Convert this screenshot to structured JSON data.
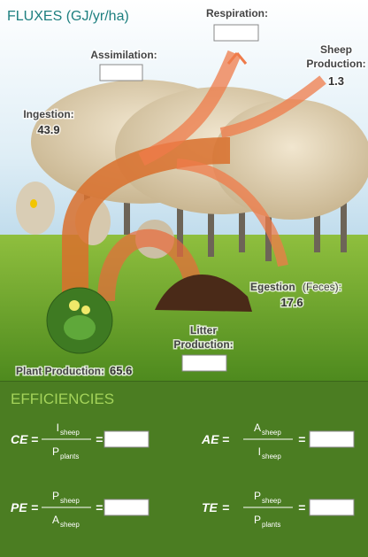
{
  "header": {
    "title": "FLUXES (GJ/yr/ha)"
  },
  "fluxes": {
    "respiration": {
      "label": "Respiration:"
    },
    "assimilation": {
      "label": "Assimilation:"
    },
    "sheep_production": {
      "label_lines": [
        "Sheep",
        "Production:"
      ],
      "value": 1.3
    },
    "ingestion": {
      "label": "Ingestion:",
      "value": 43.9
    },
    "egestion": {
      "label": "Egestion",
      "note": "(Feces):",
      "value": 17.6
    },
    "litter_production": {
      "label_lines": [
        "Litter",
        "Production:"
      ]
    },
    "plant_production": {
      "label": "Plant Production:",
      "value": 65.6
    }
  },
  "efficiencies": {
    "title": "EFFICIENCIES",
    "equals": "=",
    "formulas": [
      {
        "label": "CE",
        "numerator": {
          "symbol": "I",
          "sub": "sheep"
        },
        "denominator": {
          "symbol": "P",
          "sub": "plants"
        }
      },
      {
        "label": "AE",
        "numerator": {
          "symbol": "A",
          "sub": "sheep"
        },
        "denominator": {
          "symbol": "I",
          "sub": "sheep"
        }
      },
      {
        "label": "PE",
        "numerator": {
          "symbol": "P",
          "sub": "sheep"
        },
        "denominator": {
          "symbol": "A",
          "sub": "sheep"
        }
      },
      {
        "label": "TE",
        "numerator": {
          "symbol": "P",
          "sub": "sheep"
        },
        "denominator": {
          "symbol": "P",
          "sub": "plants"
        }
      }
    ]
  }
}
